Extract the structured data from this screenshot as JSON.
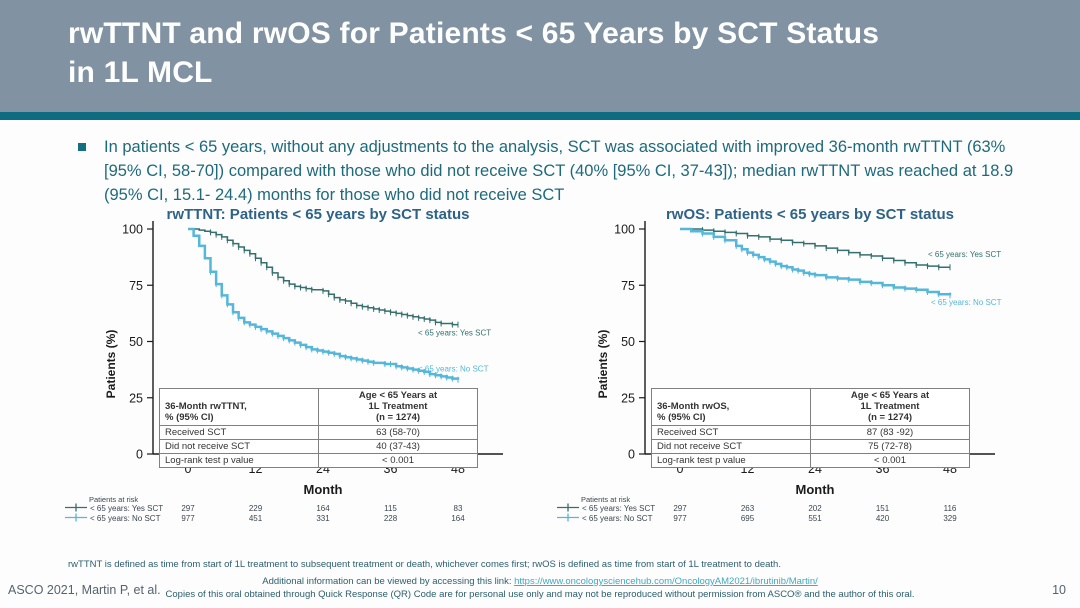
{
  "slide": {
    "title_line1": "rwTTNT and rwOS for Patients < 65 Years by SCT Status",
    "title_line2": "in 1L MCL",
    "page_number": "10"
  },
  "bullet": {
    "text": "In patients < 65 years, without any adjustments to the analysis, SCT was associated with improved 36-month rwTTNT (63% [95% CI, 58-70]) compared with those who did not receive SCT (40% [95% CI, 37-43]); median rwTTNT was reached at 18.9 (95% CI, 15.1- 24.4) months for those who did not receive SCT"
  },
  "chart_data": [
    {
      "type": "line",
      "title": "rwTTNT: Patients < 65 years by SCT status",
      "xlabel": "Month",
      "ylabel": "Patients (%)",
      "xlim": [
        0,
        48
      ],
      "xticks": [
        0,
        12,
        24,
        36,
        48
      ],
      "ylim": [
        0,
        100
      ],
      "yticks": [
        100,
        75,
        50,
        25,
        0
      ],
      "grid": false,
      "legend_position": "curve-end-labels",
      "series": [
        {
          "name": "< 65 years: Yes SCT",
          "color": "#35706e",
          "width": 1.6,
          "label_x": 355,
          "label_pct": 54,
          "points": [
            [
              0,
              100
            ],
            [
              2,
              99.5
            ],
            [
              3,
              99
            ],
            [
              4,
              98.5
            ],
            [
              5,
              97.5
            ],
            [
              6,
              96.5
            ],
            [
              7,
              95
            ],
            [
              8,
              93.5
            ],
            [
              9,
              92
            ],
            [
              10,
              90.5
            ],
            [
              11,
              89
            ],
            [
              12,
              87
            ],
            [
              13,
              85
            ],
            [
              14,
              83
            ],
            [
              15,
              80.5
            ],
            [
              16,
              78.5
            ],
            [
              17,
              77
            ],
            [
              18,
              75.5
            ],
            [
              19,
              74.5
            ],
            [
              20,
              74
            ],
            [
              21,
              73.5
            ],
            [
              22,
              73
            ],
            [
              24,
              72.5
            ],
            [
              25,
              71
            ],
            [
              26,
              69.5
            ],
            [
              27,
              68.5
            ],
            [
              28,
              68
            ],
            [
              29,
              67
            ],
            [
              30,
              66
            ],
            [
              31,
              65.5
            ],
            [
              32,
              65
            ],
            [
              33,
              64.5
            ],
            [
              34,
              64
            ],
            [
              35,
              63.5
            ],
            [
              36,
              63
            ],
            [
              37,
              62.5
            ],
            [
              38,
              62
            ],
            [
              39,
              61.5
            ],
            [
              40,
              61
            ],
            [
              41,
              60.5
            ],
            [
              42,
              60
            ],
            [
              43,
              59.5
            ],
            [
              44,
              58.5
            ],
            [
              45,
              58
            ],
            [
              47,
              57.5
            ],
            [
              48,
              57.5
            ]
          ]
        },
        {
          "name": "< 65 years: No SCT",
          "color": "#55b7d9",
          "width": 2.5,
          "label_x": 355,
          "label_pct": 38,
          "points": [
            [
              0,
              100
            ],
            [
              1,
              97
            ],
            [
              2,
              92.5
            ],
            [
              3,
              87
            ],
            [
              4,
              81
            ],
            [
              5,
              75.5
            ],
            [
              6,
              70.5
            ],
            [
              7,
              66.5
            ],
            [
              8,
              63
            ],
            [
              9,
              60.5
            ],
            [
              10,
              58.5
            ],
            [
              11,
              57.5
            ],
            [
              12,
              56.5
            ],
            [
              13,
              55.5
            ],
            [
              14,
              54.5
            ],
            [
              15,
              53.5
            ],
            [
              16,
              52.5
            ],
            [
              17,
              51.5
            ],
            [
              18,
              50.5
            ],
            [
              19,
              49.5
            ],
            [
              20,
              48.5
            ],
            [
              21,
              47.5
            ],
            [
              22,
              46.5
            ],
            [
              23,
              46
            ],
            [
              24,
              45.5
            ],
            [
              25,
              45
            ],
            [
              26,
              44.5
            ],
            [
              27,
              43.5
            ],
            [
              28,
              43
            ],
            [
              29,
              42.5
            ],
            [
              30,
              42
            ],
            [
              31,
              41.5
            ],
            [
              32,
              41
            ],
            [
              33,
              40.5
            ],
            [
              35,
              40
            ],
            [
              36,
              40
            ],
            [
              37,
              39
            ],
            [
              38,
              38.5
            ],
            [
              39,
              38
            ],
            [
              40,
              37.5
            ],
            [
              41,
              37
            ],
            [
              42,
              36.5
            ],
            [
              43,
              35.5
            ],
            [
              44,
              35
            ],
            [
              45,
              34.5
            ],
            [
              46,
              34
            ],
            [
              47,
              33.5
            ],
            [
              48,
              33
            ]
          ]
        }
      ],
      "stats_table": {
        "header": [
          "36-Month rwTTNT,\n% (95% CI)",
          "Age < 65 Years at\n1L Treatment\n(n = 1274)"
        ],
        "rows": [
          [
            "Received SCT",
            "63 (58-70)"
          ],
          [
            "Did not receive SCT",
            "40 (37-43)"
          ],
          [
            "Log-rank test p value",
            "< 0.001"
          ]
        ]
      },
      "at_risk": {
        "label": "Patients at risk",
        "rows": [
          {
            "name": "< 65 years: Yes SCT",
            "color": "#35706e",
            "values": [
              "297",
              "229",
              "164",
              "115",
              "83"
            ]
          },
          {
            "name": "< 65 years: No SCT",
            "color": "#55b7d9",
            "values": [
              "977",
              "451",
              "331",
              "228",
              "164"
            ]
          }
        ]
      }
    },
    {
      "type": "line",
      "title": "rwOS: Patients < 65 years by SCT status",
      "xlabel": "Month",
      "ylabel": "Patients (%)",
      "xlim": [
        0,
        48
      ],
      "xticks": [
        0,
        12,
        24,
        36,
        48
      ],
      "ylim": [
        0,
        100
      ],
      "yticks": [
        100,
        75,
        50,
        25,
        0
      ],
      "grid": false,
      "legend_position": "curve-end-labels",
      "series": [
        {
          "name": "< 65 years: Yes SCT",
          "color": "#35706e",
          "width": 1.6,
          "label_x": 373,
          "label_pct": 89,
          "points": [
            [
              0,
              100
            ],
            [
              2,
              100
            ],
            [
              4,
              99.5
            ],
            [
              6,
              99
            ],
            [
              8,
              98.5
            ],
            [
              10,
              98
            ],
            [
              12,
              97
            ],
            [
              14,
              96.5
            ],
            [
              16,
              95.5
            ],
            [
              18,
              95
            ],
            [
              20,
              94
            ],
            [
              22,
              93.5
            ],
            [
              24,
              92.5
            ],
            [
              26,
              91.5
            ],
            [
              28,
              90.5
            ],
            [
              30,
              89.5
            ],
            [
              32,
              88.5
            ],
            [
              34,
              88
            ],
            [
              36,
              87
            ],
            [
              38,
              86
            ],
            [
              40,
              85
            ],
            [
              42,
              84
            ],
            [
              44,
              83.5
            ],
            [
              46,
              83
            ],
            [
              48,
              83
            ]
          ]
        },
        {
          "name": "< 65 years: No SCT",
          "color": "#55b7d9",
          "width": 2.5,
          "label_x": 376,
          "label_pct": 67.5,
          "points": [
            [
              0,
              100
            ],
            [
              2,
              99
            ],
            [
              4,
              98
            ],
            [
              6,
              96.5
            ],
            [
              8,
              95
            ],
            [
              10,
              92.5
            ],
            [
              11,
              91
            ],
            [
              12,
              89.5
            ],
            [
              13,
              88.5
            ],
            [
              14,
              87.5
            ],
            [
              15,
              86.5
            ],
            [
              16,
              85.5
            ],
            [
              17,
              84.5
            ],
            [
              18,
              83.5
            ],
            [
              19,
              83
            ],
            [
              20,
              82
            ],
            [
              21,
              81.5
            ],
            [
              22,
              80.5
            ],
            [
              23,
              80
            ],
            [
              24,
              79.5
            ],
            [
              26,
              78.5
            ],
            [
              28,
              78
            ],
            [
              30,
              77.5
            ],
            [
              32,
              76.5
            ],
            [
              34,
              76
            ],
            [
              36,
              75
            ],
            [
              38,
              74
            ],
            [
              40,
              73.5
            ],
            [
              42,
              73
            ],
            [
              44,
              72
            ],
            [
              46,
              71
            ],
            [
              48,
              70.5
            ]
          ]
        }
      ],
      "stats_table": {
        "header": [
          "36-Month rwOS,\n% (95% CI)",
          "Age < 65 Years at\n1L Treatment\n(n = 1274)"
        ],
        "rows": [
          [
            "Received SCT",
            "87 (83 -92)"
          ],
          [
            "Did not receive SCT",
            "75 (72-78)"
          ],
          [
            "Log-rank test p value",
            "< 0.001"
          ]
        ]
      },
      "at_risk": {
        "label": "Patients at risk",
        "rows": [
          {
            "name": "< 65 years: Yes SCT",
            "color": "#35706e",
            "values": [
              "297",
              "263",
              "202",
              "151",
              "116"
            ]
          },
          {
            "name": "< 65 years: No SCT",
            "color": "#55b7d9",
            "values": [
              "977",
              "695",
              "551",
              "420",
              "329"
            ]
          }
        ]
      }
    }
  ],
  "footer": {
    "definition": "rwTTNT is defined as time from start of 1L treatment to subsequent treatment or death, whichever comes first; rwOS is defined as time from start of 1L treatment to death.",
    "additional_prefix": "Additional information can be viewed by accessing this link: ",
    "link": "https://www.oncologysciencehub.com/OncologyAM2021/ibrutinib/Martin/",
    "copies": "Copies of this oral obtained through Quick Response (QR) Code are for personal use only and may not be reproduced without permission from ASCO® and the author of this oral.",
    "citation": "ASCO 2021, Martin P, et al."
  }
}
